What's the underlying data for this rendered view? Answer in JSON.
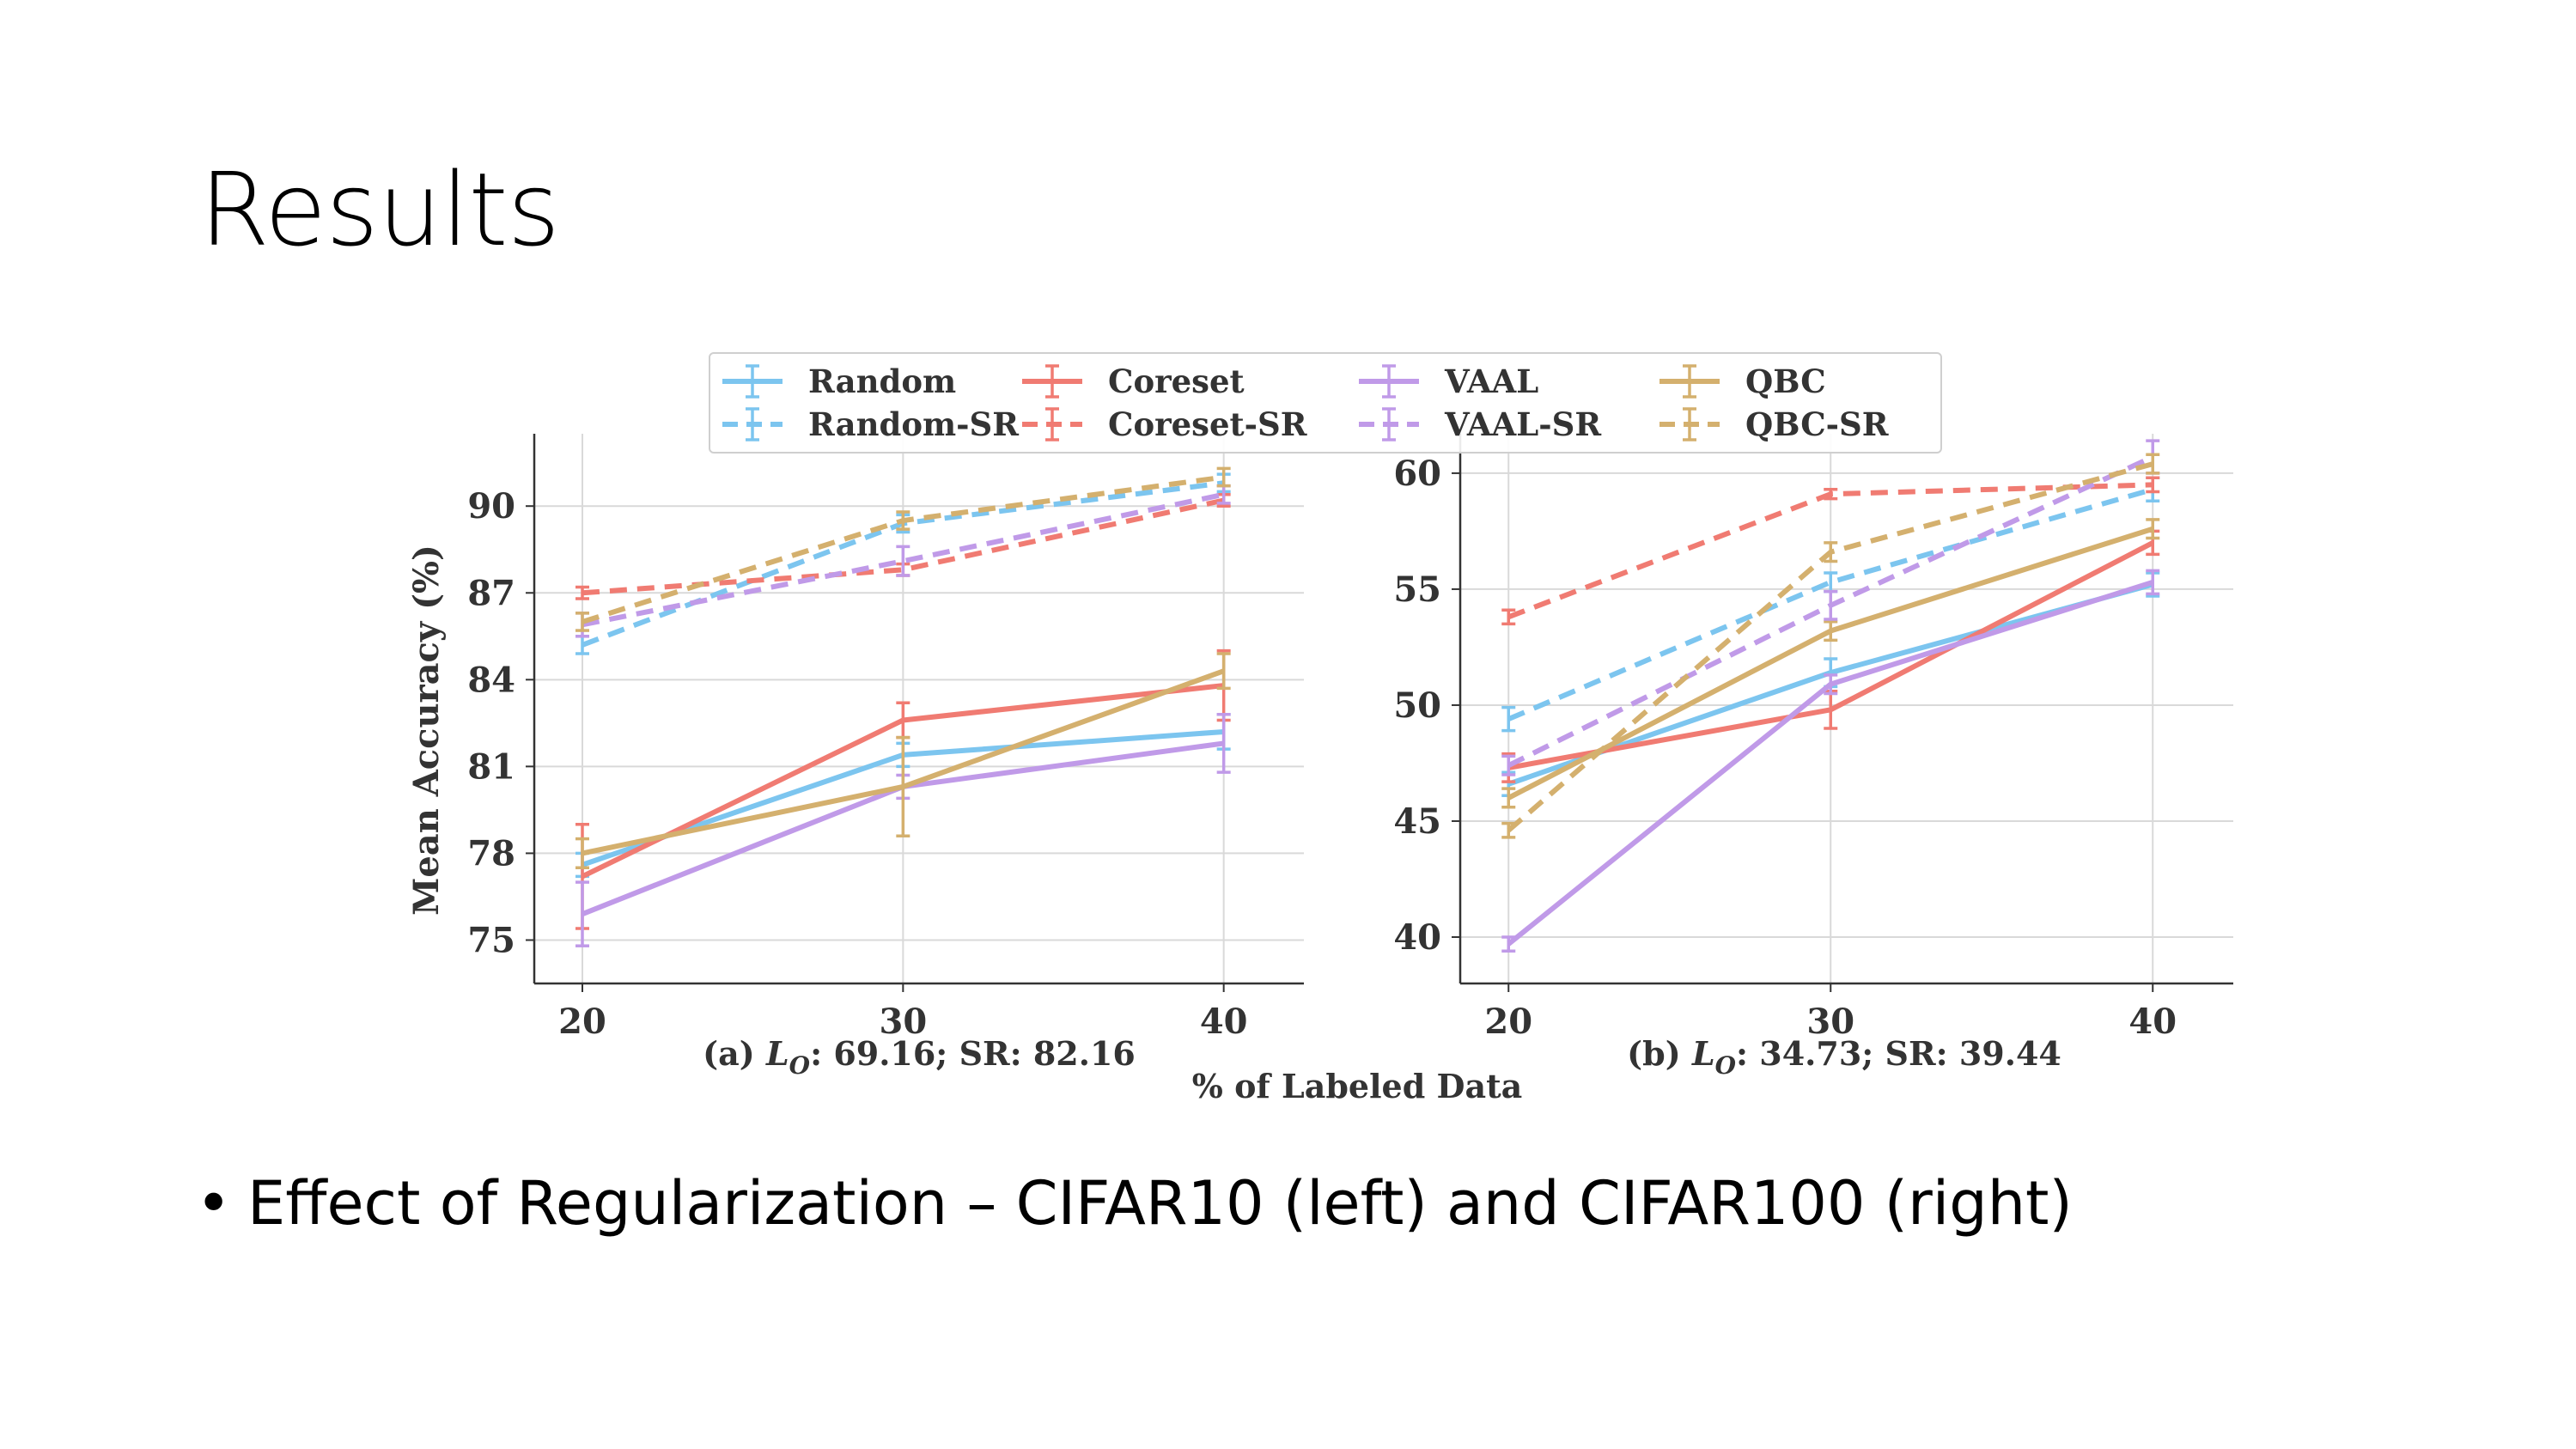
{
  "slide": {
    "title": "Results",
    "bullet_symbol": "•",
    "bullet_text": "Effect of Regularization – CIFAR10 (left) and CIFAR100 (right)"
  },
  "shared": {
    "xlabel": "% of Labeled Data",
    "ylabel": "Mean Accuracy (%)",
    "legend_placement": "top-center",
    "grid": true,
    "colors": {
      "Random": "#7cc5ef",
      "Coreset": "#f07b72",
      "VAAL": "#c09ae8",
      "QBC": "#d4b06e"
    }
  },
  "chart_data": [
    {
      "type": "line",
      "title": "",
      "caption_prefix": "(a) ",
      "caption_symbol": "L",
      "caption_subscript": "O",
      "caption_rest": ": 69.16; SR: 82.16",
      "x": [
        20,
        30,
        40
      ],
      "xticks": [
        "20",
        "30",
        "40"
      ],
      "xlim": [
        18.5,
        42.5
      ],
      "ylim": [
        73.5,
        92.5
      ],
      "yticks": [
        75,
        78,
        81,
        84,
        87,
        90
      ],
      "ytick_labels": [
        "75",
        "78",
        "81",
        "84",
        "87",
        "90"
      ],
      "series": [
        {
          "name": "Random",
          "base": "Random",
          "dashed": false,
          "values": [
            77.6,
            81.4,
            82.2
          ],
          "err": [
            0.4,
            0.4,
            0.6
          ]
        },
        {
          "name": "Coreset",
          "base": "Coreset",
          "dashed": false,
          "values": [
            77.2,
            82.6,
            83.8
          ],
          "err": [
            1.8,
            0.6,
            1.2
          ]
        },
        {
          "name": "VAAL",
          "base": "VAAL",
          "dashed": false,
          "values": [
            75.9,
            80.3,
            81.8
          ],
          "err": [
            1.1,
            0.4,
            1.0
          ]
        },
        {
          "name": "QBC",
          "base": "QBC",
          "dashed": false,
          "values": [
            78.0,
            80.3,
            84.3
          ],
          "err": [
            0.5,
            1.7,
            0.6
          ]
        },
        {
          "name": "Random-SR",
          "base": "Random",
          "dashed": true,
          "values": [
            85.2,
            89.4,
            90.8
          ],
          "err": [
            0.3,
            0.3,
            0.3
          ]
        },
        {
          "name": "Coreset-SR",
          "base": "Coreset",
          "dashed": true,
          "values": [
            87.0,
            87.8,
            90.2
          ],
          "err": [
            0.2,
            0.2,
            0.2
          ]
        },
        {
          "name": "VAAL-SR",
          "base": "VAAL",
          "dashed": true,
          "values": [
            85.9,
            88.1,
            90.4
          ],
          "err": [
            0.4,
            0.5,
            0.3
          ]
        },
        {
          "name": "QBC-SR",
          "base": "QBC",
          "dashed": true,
          "values": [
            86.0,
            89.5,
            91.0
          ],
          "err": [
            0.3,
            0.3,
            0.3
          ]
        }
      ]
    },
    {
      "type": "line",
      "title": "",
      "caption_prefix": "(b) ",
      "caption_symbol": "L",
      "caption_subscript": "O",
      "caption_rest": ": 34.73; SR: 39.44",
      "x": [
        20,
        30,
        40
      ],
      "xticks": [
        "20",
        "30",
        "40"
      ],
      "xlim": [
        18.5,
        42.5
      ],
      "ylim": [
        38.0,
        61.7
      ],
      "yticks": [
        40,
        45,
        50,
        55,
        60
      ],
      "ytick_labels": [
        "40",
        "45",
        "50",
        "55",
        "60"
      ],
      "series": [
        {
          "name": "Random",
          "base": "Random",
          "dashed": false,
          "values": [
            46.6,
            51.4,
            55.2
          ],
          "err": [
            0.5,
            0.6,
            0.5
          ]
        },
        {
          "name": "Coreset",
          "base": "Coreset",
          "dashed": false,
          "values": [
            47.3,
            49.8,
            57.0
          ],
          "err": [
            0.6,
            0.8,
            0.5
          ]
        },
        {
          "name": "VAAL",
          "base": "VAAL",
          "dashed": false,
          "values": [
            39.7,
            50.9,
            55.3
          ],
          "err": [
            0.3,
            0.4,
            0.5
          ]
        },
        {
          "name": "QBC",
          "base": "QBC",
          "dashed": false,
          "values": [
            46.0,
            53.2,
            57.6
          ],
          "err": [
            0.4,
            0.4,
            0.4
          ]
        },
        {
          "name": "Random-SR",
          "base": "Random",
          "dashed": true,
          "values": [
            49.4,
            55.3,
            59.3
          ],
          "err": [
            0.5,
            0.4,
            0.5
          ]
        },
        {
          "name": "Coreset-SR",
          "base": "Coreset",
          "dashed": true,
          "values": [
            53.8,
            59.1,
            59.5
          ],
          "err": [
            0.3,
            0.2,
            0.3
          ]
        },
        {
          "name": "VAAL-SR",
          "base": "VAAL",
          "dashed": true,
          "values": [
            47.4,
            54.3,
            60.7
          ],
          "err": [
            0.4,
            0.6,
            0.7
          ]
        },
        {
          "name": "QBC-SR",
          "base": "QBC",
          "dashed": true,
          "values": [
            44.6,
            56.6,
            60.4
          ],
          "err": [
            0.3,
            0.4,
            0.4
          ]
        }
      ]
    }
  ],
  "legend": {
    "columns": [
      [
        "Random",
        "Random-SR"
      ],
      [
        "Coreset",
        "Coreset-SR"
      ],
      [
        "VAAL",
        "VAAL-SR"
      ],
      [
        "QBC",
        "QBC-SR"
      ]
    ]
  }
}
